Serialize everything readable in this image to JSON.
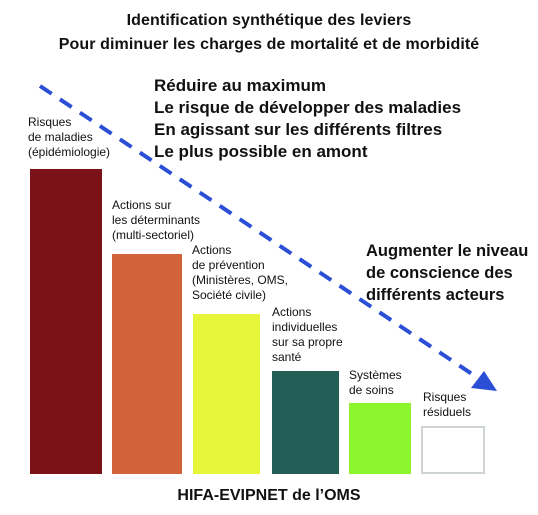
{
  "title": {
    "line1": "Identification synthétique des leviers",
    "line2": "Pour diminuer les charges de mortalité et de morbidité"
  },
  "goals": [
    "Réduire au maximum",
    "Le risque de développer des maladies",
    "En agissant sur les différents filtres",
    "Le plus possible en amont"
  ],
  "awareness": [
    "Augmenter le niveau",
    "de conscience des",
    "différents acteurs"
  ],
  "arrow": {
    "color": "#2a4fd6",
    "style": "dashed"
  },
  "bars": [
    {
      "label": [
        "Risques",
        "de maladies",
        "(épidémiologie)"
      ],
      "color": "#7a1218"
    },
    {
      "label": [
        "Actions sur",
        "les déterminants",
        "(multi-sectoriel)"
      ],
      "color": "#d2623a"
    },
    {
      "label": [
        "Actions",
        "de prévention",
        "(Ministères, OMS,",
        "Société civile)"
      ],
      "color": "#e6f53a"
    },
    {
      "label": [
        "Actions",
        "individuelles",
        "sur sa propre",
        "santé"
      ],
      "color": "#235e56"
    },
    {
      "label": [
        "Systèmes",
        "de soins"
      ],
      "color": "#8cf52e"
    },
    {
      "label": [
        "Risques",
        "résiduels"
      ],
      "color": "#ffffff"
    }
  ],
  "footer": "HIFA-EVIPNET de l’OMS"
}
